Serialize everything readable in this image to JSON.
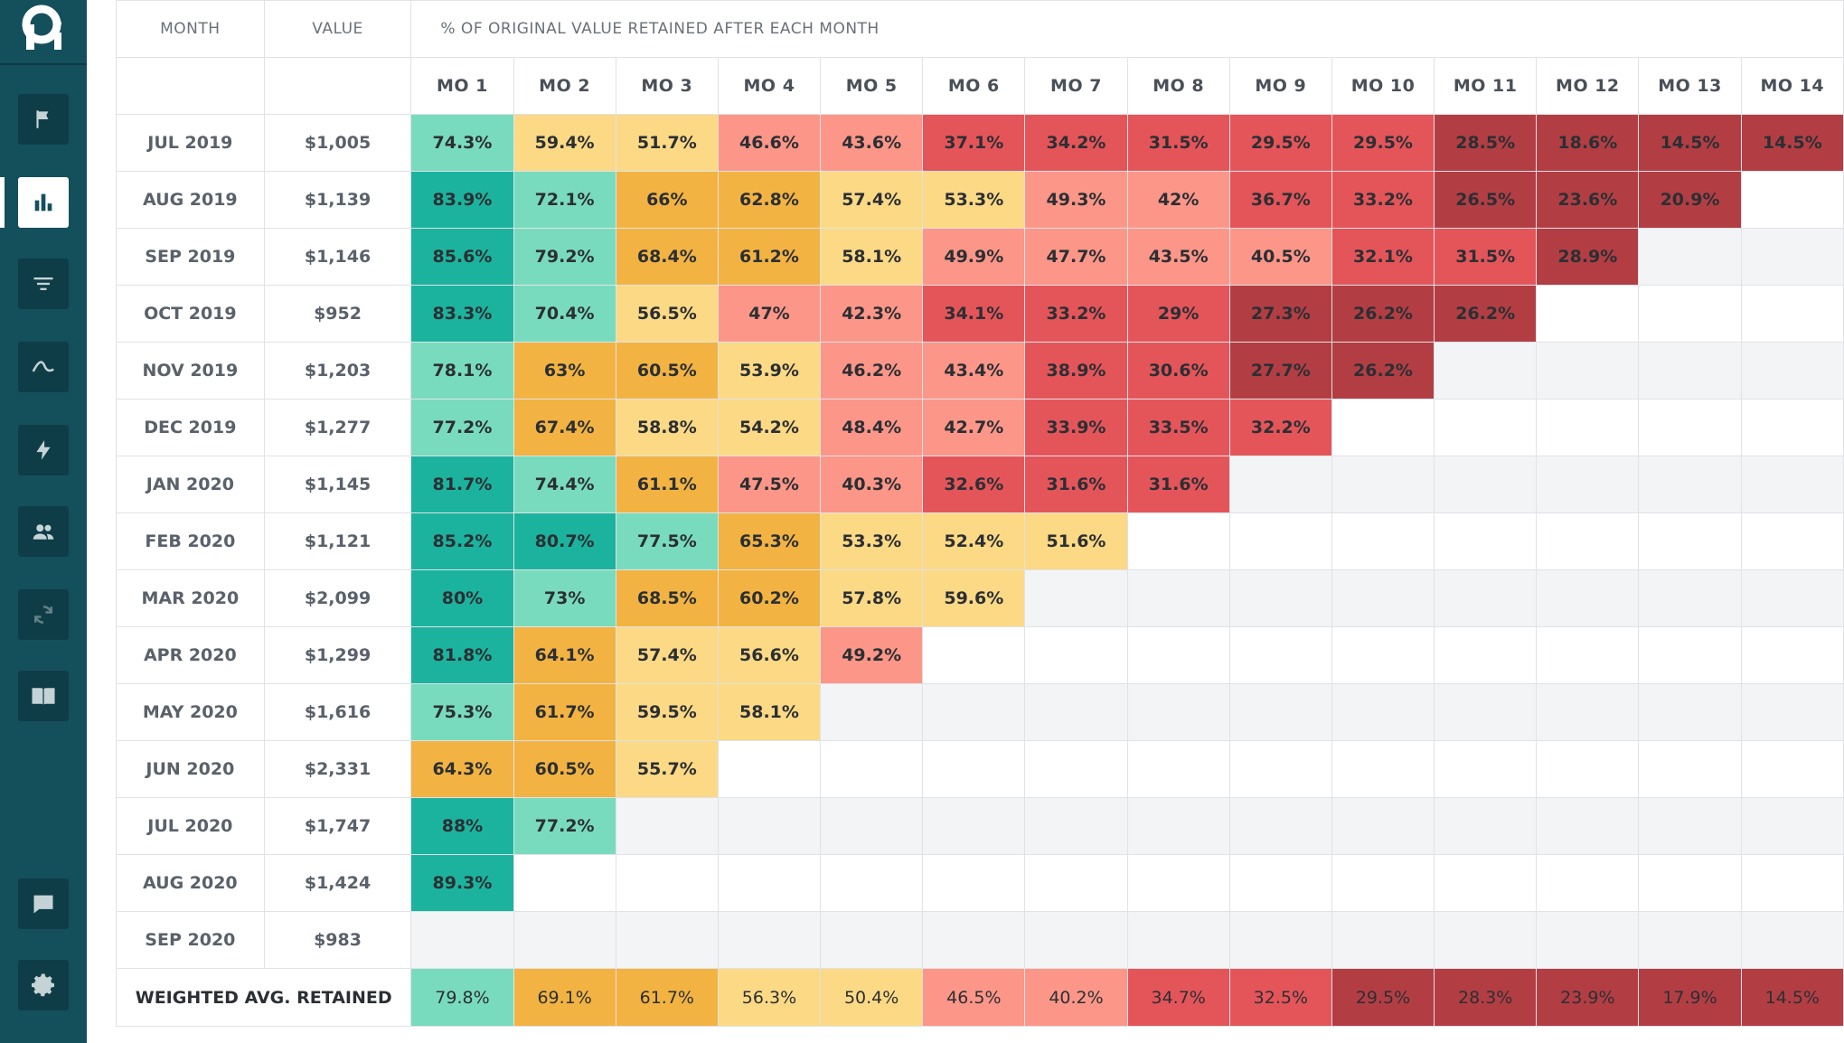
{
  "app": {
    "logo_text": "P",
    "nav_icons": [
      "flag-icon",
      "bar-chart-icon",
      "filter-icon",
      "trend-icon",
      "lightning-icon",
      "people-icon",
      "refresh-icon",
      "book-icon",
      "chat-icon",
      "gear-icon"
    ]
  },
  "table": {
    "month_header": "MONTH",
    "value_header": "VALUE",
    "pct_header": "% OF ORIGINAL VALUE RETAINED AFTER EACH MONTH",
    "month_columns": [
      "MO 1",
      "MO 2",
      "MO 3",
      "MO 4",
      "MO 5",
      "MO 6",
      "MO 7",
      "MO 8",
      "MO 9",
      "MO 10",
      "MO 11",
      "MO 12",
      "MO 13",
      "MO 14"
    ],
    "rows": [
      {
        "month": "JUL 2019",
        "value": "$1,005",
        "cells": [
          "74.3%",
          "59.4%",
          "51.7%",
          "46.6%",
          "43.6%",
          "37.1%",
          "34.2%",
          "31.5%",
          "29.5%",
          "29.5%",
          "28.5%",
          "18.6%",
          "14.5%",
          "14.5%"
        ]
      },
      {
        "month": "AUG 2019",
        "value": "$1,139",
        "cells": [
          "83.9%",
          "72.1%",
          "66%",
          "62.8%",
          "57.4%",
          "53.3%",
          "49.3%",
          "42%",
          "36.7%",
          "33.2%",
          "26.5%",
          "23.6%",
          "20.9%"
        ]
      },
      {
        "month": "SEP 2019",
        "value": "$1,146",
        "cells": [
          "85.6%",
          "79.2%",
          "68.4%",
          "61.2%",
          "58.1%",
          "49.9%",
          "47.7%",
          "43.5%",
          "40.5%",
          "32.1%",
          "31.5%",
          "28.9%"
        ]
      },
      {
        "month": "OCT 2019",
        "value": "$952",
        "cells": [
          "83.3%",
          "70.4%",
          "56.5%",
          "47%",
          "42.3%",
          "34.1%",
          "33.2%",
          "29%",
          "27.3%",
          "26.2%",
          "26.2%"
        ]
      },
      {
        "month": "NOV 2019",
        "value": "$1,203",
        "cells": [
          "78.1%",
          "63%",
          "60.5%",
          "53.9%",
          "46.2%",
          "43.4%",
          "38.9%",
          "30.6%",
          "27.7%",
          "26.2%"
        ]
      },
      {
        "month": "DEC 2019",
        "value": "$1,277",
        "cells": [
          "77.2%",
          "67.4%",
          "58.8%",
          "54.2%",
          "48.4%",
          "42.7%",
          "33.9%",
          "33.5%",
          "32.2%"
        ]
      },
      {
        "month": "JAN 2020",
        "value": "$1,145",
        "cells": [
          "81.7%",
          "74.4%",
          "61.1%",
          "47.5%",
          "40.3%",
          "32.6%",
          "31.6%",
          "31.6%"
        ]
      },
      {
        "month": "FEB 2020",
        "value": "$1,121",
        "cells": [
          "85.2%",
          "80.7%",
          "77.5%",
          "65.3%",
          "53.3%",
          "52.4%",
          "51.6%"
        ]
      },
      {
        "month": "MAR 2020",
        "value": "$2,099",
        "cells": [
          "80%",
          "73%",
          "68.5%",
          "60.2%",
          "57.8%",
          "59.6%"
        ]
      },
      {
        "month": "APR 2020",
        "value": "$1,299",
        "cells": [
          "81.8%",
          "64.1%",
          "57.4%",
          "56.6%",
          "49.2%"
        ]
      },
      {
        "month": "MAY 2020",
        "value": "$1,616",
        "cells": [
          "75.3%",
          "61.7%",
          "59.5%",
          "58.1%"
        ]
      },
      {
        "month": "JUN 2020",
        "value": "$2,331",
        "cells": [
          "64.3%",
          "60.5%",
          "55.7%"
        ]
      },
      {
        "month": "JUL 2020",
        "value": "$1,747",
        "cells": [
          "88%",
          "77.2%"
        ]
      },
      {
        "month": "AUG 2020",
        "value": "$1,424",
        "cells": [
          "89.3%"
        ]
      },
      {
        "month": "SEP 2020",
        "value": "$983",
        "cells": []
      }
    ],
    "avg_label": "WEIGHTED AVG. RETAINED",
    "avg_cells": [
      "79.8%",
      "69.1%",
      "61.7%",
      "56.3%",
      "50.4%",
      "46.5%",
      "40.2%",
      "34.7%",
      "32.5%",
      "29.5%",
      "28.3%",
      "23.9%",
      "17.9%",
      "14.5%"
    ]
  },
  "colors": {
    "sidebar": "#14505c",
    "scale": [
      "#1cb39e",
      "#79dbbd",
      "#f2b343",
      "#fcd985",
      "#fc9688",
      "#e4555a",
      "#b23e44"
    ]
  }
}
